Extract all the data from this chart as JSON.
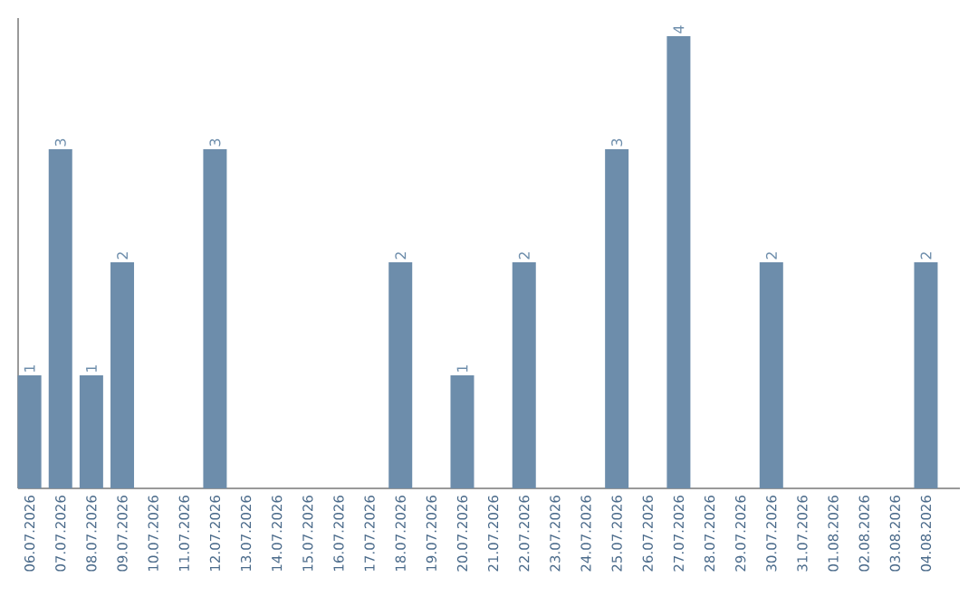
{
  "chart_data": {
    "type": "bar",
    "categories": [
      "06.07.2026",
      "07.07.2026",
      "08.07.2026",
      "09.07.2026",
      "10.07.2026",
      "11.07.2026",
      "12.07.2026",
      "13.07.2026",
      "14.07.2026",
      "15.07.2026",
      "16.07.2026",
      "17.07.2026",
      "18.07.2026",
      "19.07.2026",
      "20.07.2026",
      "21.07.2026",
      "22.07.2026",
      "23.07.2026",
      "24.07.2026",
      "25.07.2026",
      "26.07.2026",
      "27.07.2026",
      "28.07.2026",
      "29.07.2026",
      "30.07.2026",
      "31.07.2026",
      "01.08.2026",
      "02.08.2026",
      "03.08.2026",
      "04.08.2026"
    ],
    "values": [
      1,
      3,
      1,
      2,
      0,
      0,
      3,
      0,
      0,
      0,
      0,
      0,
      2,
      0,
      1,
      0,
      2,
      0,
      0,
      3,
      0,
      4,
      0,
      0,
      2,
      0,
      0,
      0,
      0,
      2
    ],
    "value_labels": [
      "1",
      "3",
      "1",
      "2",
      null,
      null,
      "3",
      null,
      null,
      null,
      null,
      null,
      "2",
      null,
      "1",
      null,
      "2",
      null,
      null,
      "3",
      null,
      "4",
      null,
      null,
      "2",
      null,
      null,
      null,
      null,
      "2"
    ],
    "color": "#6d8dab"
  }
}
